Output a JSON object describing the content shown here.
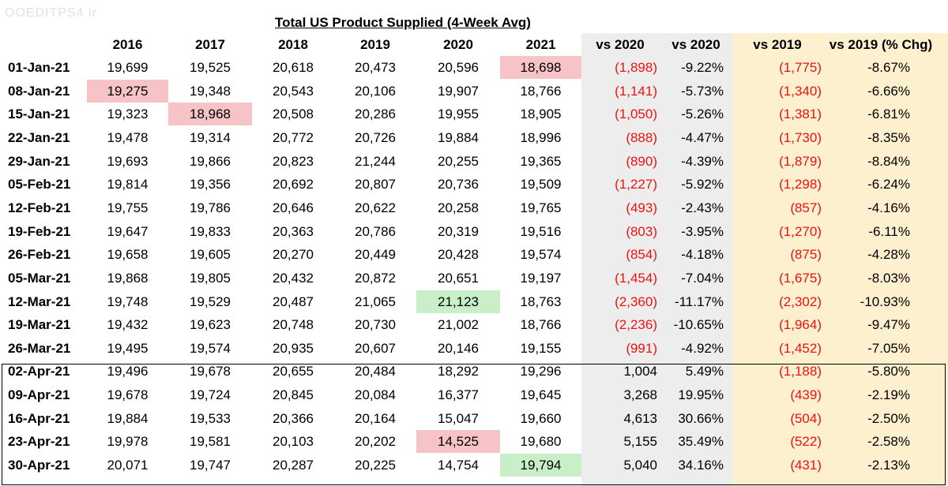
{
  "watermark": "OOEDITPS4 ir",
  "title": "Total US Product Supplied (4-Week Avg)",
  "colors": {
    "negative": "#ee1111",
    "highlight_red": "#f6c4c6",
    "highlight_green": "#c8efc8",
    "gray_band": "#ededed",
    "yellow_band": "#fdf0cf"
  },
  "headers": [
    "2016",
    "2017",
    "2018",
    "2019",
    "2020",
    "2021",
    "vs 2020",
    "vs 2020",
    "vs 2019",
    "vs 2019 (% Chg)"
  ],
  "rows": [
    {
      "date": "01-Jan-21",
      "y2016": "19,699",
      "y2017": "19,525",
      "y2018": "20,618",
      "y2019": "20,473",
      "y2020": "20,596",
      "y2021": "18,698",
      "vs2020": "(1,898)",
      "vs2020pct": "-9.22%",
      "vs2019": "(1,775)",
      "vs2019pct": "-8.67%"
    },
    {
      "date": "08-Jan-21",
      "y2016": "19,275",
      "y2017": "19,348",
      "y2018": "20,543",
      "y2019": "20,106",
      "y2020": "19,907",
      "y2021": "18,766",
      "vs2020": "(1,141)",
      "vs2020pct": "-5.73%",
      "vs2019": "(1,340)",
      "vs2019pct": "-6.66%"
    },
    {
      "date": "15-Jan-21",
      "y2016": "19,323",
      "y2017": "18,968",
      "y2018": "20,508",
      "y2019": "20,286",
      "y2020": "19,955",
      "y2021": "18,905",
      "vs2020": "(1,050)",
      "vs2020pct": "-5.26%",
      "vs2019": "(1,381)",
      "vs2019pct": "-6.81%"
    },
    {
      "date": "22-Jan-21",
      "y2016": "19,478",
      "y2017": "19,314",
      "y2018": "20,772",
      "y2019": "20,726",
      "y2020": "19,884",
      "y2021": "18,996",
      "vs2020": "(888)",
      "vs2020pct": "-4.47%",
      "vs2019": "(1,730)",
      "vs2019pct": "-8.35%"
    },
    {
      "date": "29-Jan-21",
      "y2016": "19,693",
      "y2017": "19,866",
      "y2018": "20,823",
      "y2019": "21,244",
      "y2020": "20,255",
      "y2021": "19,365",
      "vs2020": "(890)",
      "vs2020pct": "-4.39%",
      "vs2019": "(1,879)",
      "vs2019pct": "-8.84%"
    },
    {
      "date": "05-Feb-21",
      "y2016": "19,814",
      "y2017": "19,356",
      "y2018": "20,692",
      "y2019": "20,807",
      "y2020": "20,736",
      "y2021": "19,509",
      "vs2020": "(1,227)",
      "vs2020pct": "-5.92%",
      "vs2019": "(1,298)",
      "vs2019pct": "-6.24%"
    },
    {
      "date": "12-Feb-21",
      "y2016": "19,755",
      "y2017": "19,786",
      "y2018": "20,646",
      "y2019": "20,622",
      "y2020": "20,258",
      "y2021": "19,765",
      "vs2020": "(493)",
      "vs2020pct": "-2.43%",
      "vs2019": "(857)",
      "vs2019pct": "-4.16%"
    },
    {
      "date": "19-Feb-21",
      "y2016": "19,647",
      "y2017": "19,833",
      "y2018": "20,363",
      "y2019": "20,786",
      "y2020": "20,319",
      "y2021": "19,516",
      "vs2020": "(803)",
      "vs2020pct": "-3.95%",
      "vs2019": "(1,270)",
      "vs2019pct": "-6.11%"
    },
    {
      "date": "26-Feb-21",
      "y2016": "19,658",
      "y2017": "19,605",
      "y2018": "20,270",
      "y2019": "20,449",
      "y2020": "20,428",
      "y2021": "19,574",
      "vs2020": "(854)",
      "vs2020pct": "-4.18%",
      "vs2019": "(875)",
      "vs2019pct": "-4.28%"
    },
    {
      "date": "05-Mar-21",
      "y2016": "19,868",
      "y2017": "19,805",
      "y2018": "20,432",
      "y2019": "20,872",
      "y2020": "20,651",
      "y2021": "19,197",
      "vs2020": "(1,454)",
      "vs2020pct": "-7.04%",
      "vs2019": "(1,675)",
      "vs2019pct": "-8.03%"
    },
    {
      "date": "12-Mar-21",
      "y2016": "19,748",
      "y2017": "19,529",
      "y2018": "20,487",
      "y2019": "21,065",
      "y2020": "21,123",
      "y2021": "18,763",
      "vs2020": "(2,360)",
      "vs2020pct": "-11.17%",
      "vs2019": "(2,302)",
      "vs2019pct": "-10.93%"
    },
    {
      "date": "19-Mar-21",
      "y2016": "19,432",
      "y2017": "19,623",
      "y2018": "20,748",
      "y2019": "20,730",
      "y2020": "21,002",
      "y2021": "18,766",
      "vs2020": "(2,236)",
      "vs2020pct": "-10.65%",
      "vs2019": "(1,964)",
      "vs2019pct": "-9.47%"
    },
    {
      "date": "26-Mar-21",
      "y2016": "19,495",
      "y2017": "19,574",
      "y2018": "20,935",
      "y2019": "20,607",
      "y2020": "20,146",
      "y2021": "19,155",
      "vs2020": "(991)",
      "vs2020pct": "-4.92%",
      "vs2019": "(1,452)",
      "vs2019pct": "-7.05%"
    },
    {
      "date": "02-Apr-21",
      "y2016": "19,496",
      "y2017": "19,678",
      "y2018": "20,655",
      "y2019": "20,484",
      "y2020": "18,292",
      "y2021": "19,296",
      "vs2020": "1,004",
      "vs2020pct": "5.49%",
      "vs2019": "(1,188)",
      "vs2019pct": "-5.80%"
    },
    {
      "date": "09-Apr-21",
      "y2016": "19,678",
      "y2017": "19,724",
      "y2018": "20,845",
      "y2019": "20,084",
      "y2020": "16,377",
      "y2021": "19,645",
      "vs2020": "3,268",
      "vs2020pct": "19.95%",
      "vs2019": "(439)",
      "vs2019pct": "-2.19%"
    },
    {
      "date": "16-Apr-21",
      "y2016": "19,884",
      "y2017": "19,533",
      "y2018": "20,366",
      "y2019": "20,164",
      "y2020": "15,047",
      "y2021": "19,660",
      "vs2020": "4,613",
      "vs2020pct": "30.66%",
      "vs2019": "(504)",
      "vs2019pct": "-2.50%"
    },
    {
      "date": "23-Apr-21",
      "y2016": "19,978",
      "y2017": "19,581",
      "y2018": "20,103",
      "y2019": "20,202",
      "y2020": "14,525",
      "y2021": "19,680",
      "vs2020": "5,155",
      "vs2020pct": "35.49%",
      "vs2019": "(522)",
      "vs2019pct": "-2.58%"
    },
    {
      "date": "30-Apr-21",
      "y2016": "20,071",
      "y2017": "19,747",
      "y2018": "20,287",
      "y2019": "20,225",
      "y2020": "14,754",
      "y2021": "19,794",
      "vs2020": "5,040",
      "vs2020pct": "34.16%",
      "vs2019": "(431)",
      "vs2019pct": "-2.13%"
    }
  ],
  "highlights": [
    {
      "row": 0,
      "col": "y2021",
      "color": "red"
    },
    {
      "row": 1,
      "col": "y2016",
      "color": "red"
    },
    {
      "row": 2,
      "col": "y2017",
      "color": "red"
    },
    {
      "row": 10,
      "col": "y2020",
      "color": "green"
    },
    {
      "row": 16,
      "col": "y2020",
      "color": "red"
    },
    {
      "row": 17,
      "col": "y2021",
      "color": "green"
    }
  ]
}
